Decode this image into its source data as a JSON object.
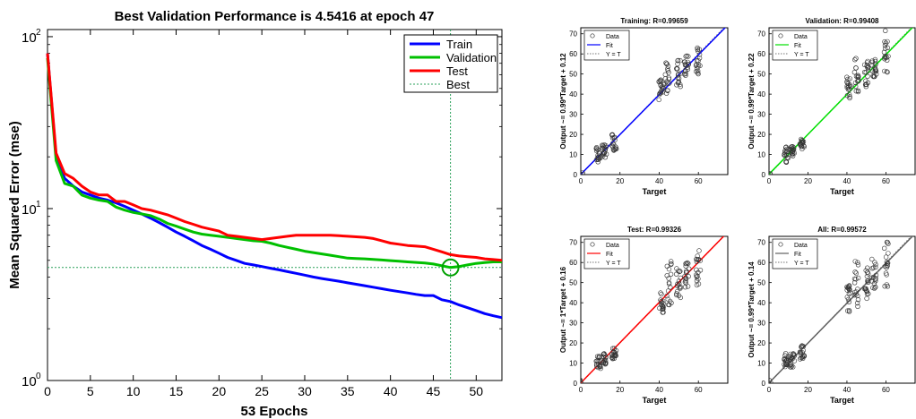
{
  "chart_data": [
    {
      "type": "line",
      "title": "Best Validation Performance is 4.5416 at epoch 47",
      "xlabel": "53 Epochs",
      "ylabel": "Mean Squared Error  (mse)",
      "yscale": "log",
      "xlim": [
        0,
        53
      ],
      "ylim": [
        1,
        110
      ],
      "xticks": [
        0,
        5,
        10,
        15,
        20,
        25,
        30,
        35,
        40,
        45,
        50
      ],
      "yticks": [
        {
          "value": 1,
          "base": "10",
          "exp": "0"
        },
        {
          "value": 10,
          "base": "10",
          "exp": "1"
        },
        {
          "value": 100,
          "base": "10",
          "exp": "2"
        }
      ],
      "legend": {
        "position": "top-right"
      },
      "x": [
        0,
        1,
        2,
        3,
        4,
        5,
        6,
        7,
        8,
        9,
        10,
        11,
        12,
        13,
        14,
        15,
        16,
        17,
        18,
        19,
        20,
        21,
        22,
        23,
        24,
        25,
        26,
        27,
        28,
        29,
        30,
        31,
        32,
        33,
        34,
        35,
        36,
        37,
        38,
        39,
        40,
        41,
        42,
        43,
        44,
        45,
        46,
        47,
        48,
        49,
        50,
        51,
        52,
        53
      ],
      "series": [
        {
          "name": "Train",
          "color": "#0000ff",
          "values": [
            80,
            20,
            15,
            13.5,
            12.5,
            12,
            11.5,
            11.2,
            10.8,
            10.3,
            9.8,
            9.3,
            8.8,
            8.3,
            7.8,
            7.3,
            6.9,
            6.5,
            6.1,
            5.8,
            5.5,
            5.2,
            5.0,
            4.8,
            4.7,
            4.6,
            4.5,
            4.4,
            4.3,
            4.2,
            4.1,
            4.0,
            3.92,
            3.85,
            3.78,
            3.7,
            3.63,
            3.56,
            3.49,
            3.42,
            3.35,
            3.29,
            3.23,
            3.17,
            3.12,
            3.12,
            2.95,
            2.88,
            2.75,
            2.65,
            2.55,
            2.45,
            2.38,
            2.32
          ]
        },
        {
          "name": "Validation",
          "color": "#00c000",
          "values": [
            75,
            19,
            14,
            13.5,
            12,
            11.5,
            11.2,
            11,
            10.2,
            9.8,
            9.5,
            9.3,
            9.1,
            8.7,
            8.2,
            7.9,
            7.6,
            7.3,
            7.1,
            7.0,
            6.9,
            6.8,
            6.7,
            6.6,
            6.5,
            6.45,
            6.3,
            6.1,
            5.95,
            5.8,
            5.65,
            5.55,
            5.45,
            5.35,
            5.25,
            5.15,
            5.12,
            5.1,
            5.06,
            5.02,
            4.98,
            4.94,
            4.9,
            4.86,
            4.82,
            4.76,
            4.65,
            4.5416,
            4.6,
            4.7,
            4.8,
            4.85,
            4.9,
            4.9
          ]
        },
        {
          "name": "Test",
          "color": "#ff0000",
          "values": [
            80,
            21,
            16,
            15,
            13.5,
            12.5,
            12,
            12,
            11,
            11,
            10.5,
            10,
            9.8,
            9.5,
            9.2,
            8.8,
            8.4,
            8.1,
            7.8,
            7.6,
            7.4,
            7.0,
            6.9,
            6.8,
            6.7,
            6.6,
            6.7,
            6.8,
            6.9,
            7.0,
            7.0,
            7.0,
            7.0,
            7.0,
            6.95,
            6.9,
            6.85,
            6.8,
            6.7,
            6.5,
            6.3,
            6.2,
            6.1,
            6.05,
            6.0,
            5.8,
            5.6,
            5.4,
            5.3,
            5.25,
            5.2,
            5.1,
            5.05,
            5.0
          ]
        }
      ],
      "best": {
        "label": "Best",
        "epoch": 47,
        "value": 4.5416
      }
    },
    {
      "type": "scatter",
      "title": "Training: R=0.99659",
      "xlabel": "Target",
      "ylabel": "Output ~= 0.99*Target + 0.12",
      "xlim": [
        0,
        75
      ],
      "ylim": [
        0,
        73
      ],
      "xticks": [
        0,
        20,
        40,
        60
      ],
      "yticks": [
        0,
        10,
        20,
        30,
        40,
        50,
        60,
        70
      ],
      "fit": {
        "slope": 0.99,
        "intercept": 0.12,
        "color": "#0000ff"
      },
      "legend": [
        "Data",
        "Fit",
        "Y = T"
      ],
      "clusters": [
        {
          "x": 0,
          "y_low": 0,
          "y_high": 1
        },
        {
          "x": 9,
          "y_low": 6,
          "y_high": 14
        },
        {
          "x": 12,
          "y_low": 8,
          "y_high": 15
        },
        {
          "x": 17,
          "y_low": 12,
          "y_high": 20
        },
        {
          "x": 41,
          "y_low": 37,
          "y_high": 48
        },
        {
          "x": 44,
          "y_low": 40,
          "y_high": 56
        },
        {
          "x": 50,
          "y_low": 43,
          "y_high": 57
        },
        {
          "x": 54,
          "y_low": 48,
          "y_high": 60
        },
        {
          "x": 60,
          "y_low": 50,
          "y_high": 64
        }
      ]
    },
    {
      "type": "scatter",
      "title": "Validation: R=0.99408",
      "xlabel": "Target",
      "ylabel": "Output ~= 0.99*Target + 0.22",
      "xlim": [
        0,
        75
      ],
      "ylim": [
        0,
        73
      ],
      "xticks": [
        0,
        20,
        40,
        60
      ],
      "yticks": [
        0,
        10,
        20,
        30,
        40,
        50,
        60,
        70
      ],
      "fit": {
        "slope": 0.99,
        "intercept": 0.22,
        "color": "#00e000"
      },
      "legend": [
        "Data",
        "Fit",
        "Y = T"
      ],
      "clusters": [
        {
          "x": 0,
          "y_low": 0,
          "y_high": 2
        },
        {
          "x": 9,
          "y_low": 6,
          "y_high": 14
        },
        {
          "x": 12,
          "y_low": 9,
          "y_high": 15
        },
        {
          "x": 17,
          "y_low": 12,
          "y_high": 18
        },
        {
          "x": 41,
          "y_low": 38,
          "y_high": 49
        },
        {
          "x": 45,
          "y_low": 40,
          "y_high": 58
        },
        {
          "x": 50,
          "y_low": 42,
          "y_high": 58
        },
        {
          "x": 54,
          "y_low": 48,
          "y_high": 60
        },
        {
          "x": 60,
          "y_low": 50,
          "y_high": 73
        }
      ]
    },
    {
      "type": "scatter",
      "title": "Test: R=0.99326",
      "xlabel": "Target",
      "ylabel": "Output ~= 1*Target + 0.16",
      "xlim": [
        0,
        75
      ],
      "ylim": [
        0,
        73
      ],
      "xticks": [
        0,
        20,
        40,
        60
      ],
      "yticks": [
        0,
        10,
        20,
        30,
        40,
        50,
        60,
        70
      ],
      "fit": {
        "slope": 1.0,
        "intercept": 0.16,
        "color": "#ff0000"
      },
      "legend": [
        "Data",
        "Fit",
        "Y = T"
      ],
      "clusters": [
        {
          "x": 0,
          "y_low": 0,
          "y_high": 2
        },
        {
          "x": 9,
          "y_low": 7,
          "y_high": 14
        },
        {
          "x": 12,
          "y_low": 9,
          "y_high": 15
        },
        {
          "x": 17,
          "y_low": 12,
          "y_high": 18
        },
        {
          "x": 41,
          "y_low": 35,
          "y_high": 47
        },
        {
          "x": 45,
          "y_low": 38,
          "y_high": 61
        },
        {
          "x": 50,
          "y_low": 42,
          "y_high": 57
        },
        {
          "x": 54,
          "y_low": 47,
          "y_high": 60
        },
        {
          "x": 60,
          "y_low": 48,
          "y_high": 68
        }
      ]
    },
    {
      "type": "scatter",
      "title": "All: R=0.99572",
      "xlabel": "Target",
      "ylabel": "Output ~= 0.99*Target + 0.14",
      "xlim": [
        0,
        75
      ],
      "ylim": [
        0,
        73
      ],
      "xticks": [
        0,
        20,
        40,
        60
      ],
      "yticks": [
        0,
        10,
        20,
        30,
        40,
        50,
        60,
        70
      ],
      "fit": {
        "slope": 0.99,
        "intercept": 0.14,
        "color": "#606060"
      },
      "legend": [
        "Data",
        "Fit",
        "Y = T"
      ],
      "clusters": [
        {
          "x": 0,
          "y_low": 0,
          "y_high": 2
        },
        {
          "x": 9,
          "y_low": 6,
          "y_high": 15
        },
        {
          "x": 12,
          "y_low": 8,
          "y_high": 15
        },
        {
          "x": 17,
          "y_low": 12,
          "y_high": 19
        },
        {
          "x": 41,
          "y_low": 35,
          "y_high": 49
        },
        {
          "x": 45,
          "y_low": 38,
          "y_high": 61
        },
        {
          "x": 50,
          "y_low": 42,
          "y_high": 58
        },
        {
          "x": 54,
          "y_low": 47,
          "y_high": 62
        },
        {
          "x": 60,
          "y_low": 48,
          "y_high": 73
        }
      ]
    }
  ]
}
